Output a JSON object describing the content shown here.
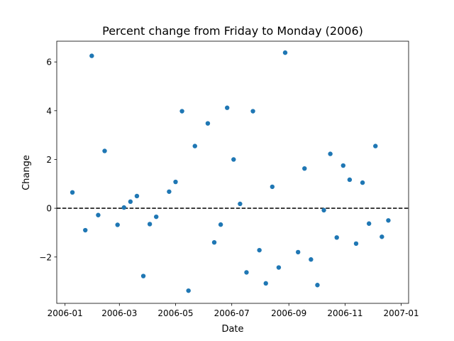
{
  "chart_data": {
    "type": "scatter",
    "title": "Percent change from Friday to Monday (2006)",
    "xlabel": "Date",
    "ylabel": "Change",
    "x_ticks": [
      "2006-01",
      "2006-03",
      "2006-05",
      "2006-07",
      "2006-09",
      "2006-11",
      "2007-01"
    ],
    "y_ticks": [
      -2,
      0,
      2,
      4,
      6
    ],
    "xlim": [
      "2005-12-23",
      "2007-01-09"
    ],
    "ylim": [
      -3.9,
      6.85
    ],
    "reference_line": {
      "y": 0,
      "style": "dashed",
      "color": "#000000"
    },
    "marker_color": "#1f77b4",
    "grid": false,
    "points": [
      {
        "x": "2006-01-09",
        "y": 0.65
      },
      {
        "x": "2006-01-23",
        "y": -0.9
      },
      {
        "x": "2006-01-30",
        "y": 6.25
      },
      {
        "x": "2006-02-06",
        "y": -0.28
      },
      {
        "x": "2006-02-13",
        "y": 2.35
      },
      {
        "x": "2006-02-27",
        "y": -0.68
      },
      {
        "x": "2006-03-06",
        "y": 0.03
      },
      {
        "x": "2006-03-13",
        "y": 0.27
      },
      {
        "x": "2006-03-20",
        "y": 0.5
      },
      {
        "x": "2006-03-27",
        "y": -2.78
      },
      {
        "x": "2006-04-03",
        "y": -0.65
      },
      {
        "x": "2006-04-10",
        "y": -0.35
      },
      {
        "x": "2006-04-24",
        "y": 0.68
      },
      {
        "x": "2006-05-01",
        "y": 1.08
      },
      {
        "x": "2006-05-08",
        "y": 3.98
      },
      {
        "x": "2006-05-15",
        "y": -3.38
      },
      {
        "x": "2006-05-22",
        "y": 2.55
      },
      {
        "x": "2006-06-05",
        "y": 3.48
      },
      {
        "x": "2006-06-12",
        "y": -1.4
      },
      {
        "x": "2006-06-19",
        "y": -0.67
      },
      {
        "x": "2006-06-26",
        "y": 4.12
      },
      {
        "x": "2006-07-03",
        "y": 2.0
      },
      {
        "x": "2006-07-10",
        "y": 0.18
      },
      {
        "x": "2006-07-17",
        "y": -2.63
      },
      {
        "x": "2006-07-24",
        "y": 3.98
      },
      {
        "x": "2006-07-31",
        "y": -1.72
      },
      {
        "x": "2006-08-07",
        "y": -3.08
      },
      {
        "x": "2006-08-14",
        "y": 0.88
      },
      {
        "x": "2006-08-21",
        "y": -2.43
      },
      {
        "x": "2006-08-28",
        "y": 6.38
      },
      {
        "x": "2006-09-11",
        "y": -1.8
      },
      {
        "x": "2006-09-18",
        "y": 1.63
      },
      {
        "x": "2006-09-25",
        "y": -2.1
      },
      {
        "x": "2006-10-02",
        "y": -3.15
      },
      {
        "x": "2006-10-09",
        "y": -0.08
      },
      {
        "x": "2006-10-16",
        "y": 2.23
      },
      {
        "x": "2006-10-23",
        "y": -1.2
      },
      {
        "x": "2006-10-30",
        "y": 1.75
      },
      {
        "x": "2006-11-06",
        "y": 1.17
      },
      {
        "x": "2006-11-13",
        "y": -1.45
      },
      {
        "x": "2006-11-20",
        "y": 1.05
      },
      {
        "x": "2006-11-27",
        "y": -0.63
      },
      {
        "x": "2006-12-04",
        "y": 2.55
      },
      {
        "x": "2006-12-11",
        "y": -1.17
      },
      {
        "x": "2006-12-18",
        "y": -0.5
      }
    ]
  }
}
